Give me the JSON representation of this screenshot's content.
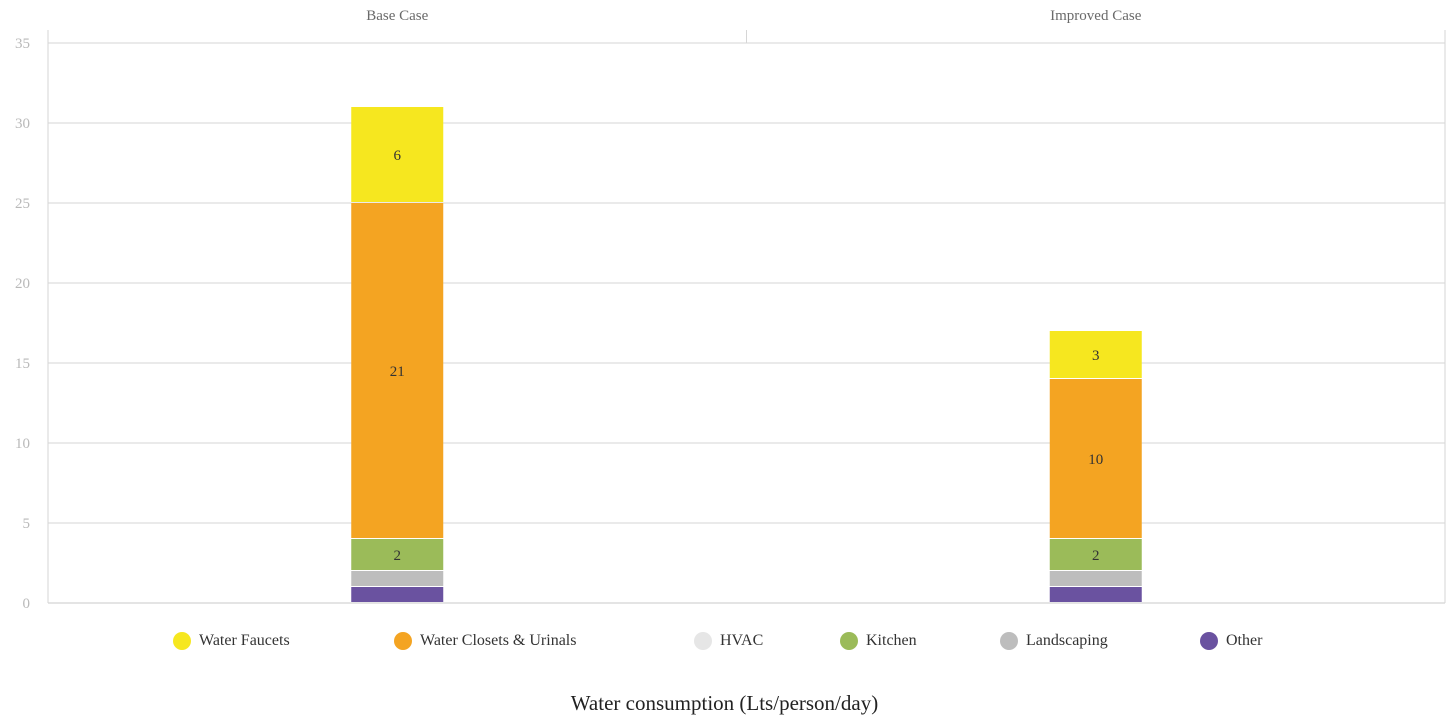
{
  "chart_data": {
    "type": "bar",
    "stacked": true,
    "categories": [
      "Base Case",
      "Improved Case"
    ],
    "series": [
      {
        "name": "Other",
        "color": "#6a52a0",
        "values": [
          1,
          1
        ],
        "labels": [
          null,
          null
        ]
      },
      {
        "name": "Landscaping",
        "color": "#bdbdbd",
        "values": [
          1,
          1
        ],
        "labels": [
          null,
          null
        ]
      },
      {
        "name": "Kitchen",
        "color": "#9bbb59",
        "values": [
          2,
          2
        ],
        "labels": [
          "2",
          "2"
        ]
      },
      {
        "name": "HVAC",
        "color": "#e6e6e6",
        "values": [
          0,
          0
        ],
        "labels": [
          null,
          null
        ]
      },
      {
        "name": "Water Closets & Urinals",
        "color": "#f4a422",
        "values": [
          21,
          10
        ],
        "labels": [
          "21",
          "10"
        ]
      },
      {
        "name": "Water Faucets",
        "color": "#f6e71f",
        "values": [
          6,
          3
        ],
        "labels": [
          "6",
          "3"
        ]
      }
    ],
    "legend_order": [
      "Water Faucets",
      "Water Closets & Urinals",
      "HVAC",
      "Kitchen",
      "Landscaping",
      "Other"
    ],
    "yticks": [
      "0",
      "5",
      "10",
      "15",
      "20",
      "25",
      "30",
      "35"
    ],
    "ylim": [
      0,
      35
    ],
    "xlabel": "Water consumption (Lts/person/day)",
    "ylabel": "",
    "legend_position": "bottom",
    "grid": true
  }
}
